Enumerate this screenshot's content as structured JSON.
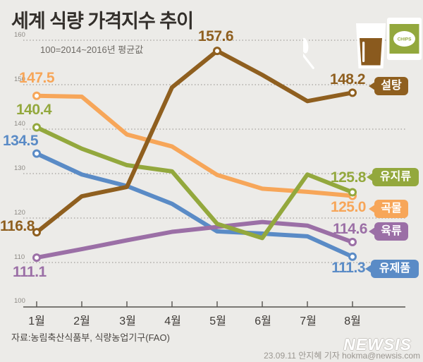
{
  "title": "세계 식량 가격지수 추이",
  "subtitle": "100=2014~2016년 평균값",
  "source": "자료:농림축산식품부, 식량농업기구(FAO)",
  "credit": "23.09.11 안지혜 기자 hokma@newsis.com",
  "watermark": "NEWSIS",
  "chips_label": "CHIPS",
  "colors": {
    "background": "#ECEBE8",
    "grid": "#A29F9A",
    "axis": "#55524E"
  },
  "chart_data": {
    "type": "line",
    "title": "세계 식량 가격지수 추이",
    "note": "100=2014~2016년 평균값",
    "categories": [
      "1월",
      "2월",
      "3월",
      "4월",
      "5월",
      "6월",
      "7월",
      "8월"
    ],
    "ylim": [
      100,
      160
    ],
    "yticks": [
      160,
      150,
      140,
      130,
      120,
      110,
      100
    ],
    "grid": "horizontal-dotted",
    "legend_position": "right-badges",
    "series": [
      {
        "key": "sugar",
        "label": "설탕",
        "color": "#8F5F1F",
        "values": [
          116.8,
          124.9,
          127.0,
          149.4,
          157.6,
          152.2,
          146.3,
          148.2
        ],
        "start_label": "116.8",
        "end_label": "148.2",
        "peak_index": 4,
        "peak_label": "157.6"
      },
      {
        "key": "oils",
        "label": "유지류",
        "color": "#93A83D",
        "values": [
          140.4,
          135.6,
          131.9,
          130.5,
          118.7,
          115.5,
          129.8,
          125.8
        ],
        "start_label": "140.4",
        "end_label": "125.8"
      },
      {
        "key": "cereals",
        "label": "곡물",
        "color": "#F7A659",
        "values": [
          147.5,
          147.3,
          138.8,
          136.1,
          129.7,
          126.6,
          125.9,
          125.0
        ],
        "start_label": "147.5",
        "end_label": "125.0"
      },
      {
        "key": "meat",
        "label": "육류",
        "color": "#9B6FA6",
        "values": [
          111.1,
          113.0,
          115.0,
          116.9,
          118.0,
          119.1,
          118.3,
          114.6
        ],
        "start_label": "111.1",
        "end_label": "114.6"
      },
      {
        "key": "dairy",
        "label": "유제품",
        "color": "#5A8BC6",
        "values": [
          134.5,
          129.8,
          127.2,
          123.2,
          117.0,
          116.5,
          115.9,
          111.3
        ],
        "start_label": "134.5",
        "end_label": "111.3"
      }
    ]
  }
}
